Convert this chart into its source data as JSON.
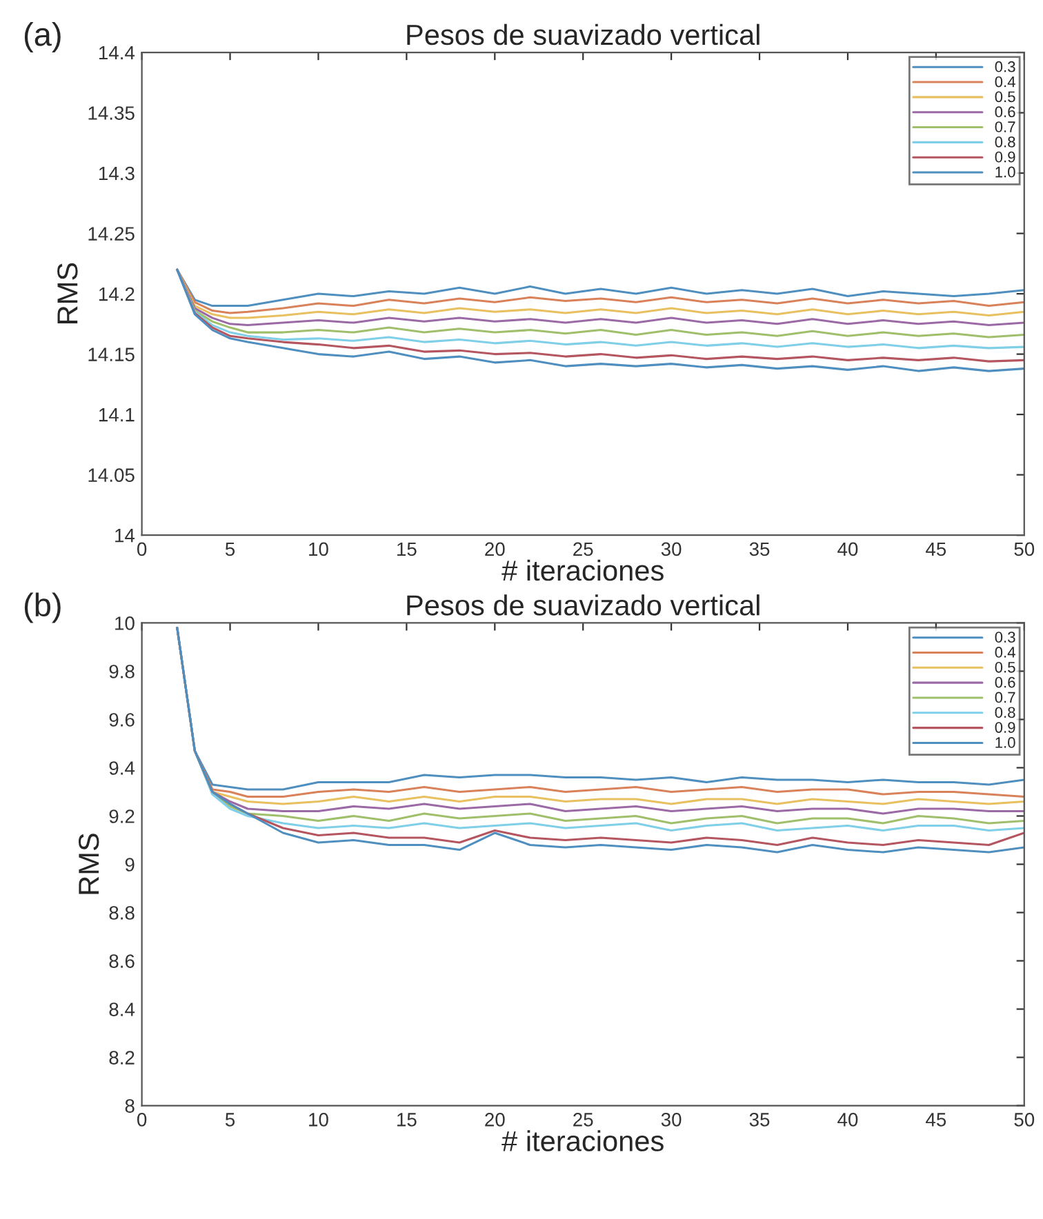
{
  "chart_data": [
    {
      "type": "line",
      "title": "Pesos de suavizado vertical",
      "xlabel": "# iteraciones",
      "ylabel": "RMS",
      "annotations": [
        "(a)"
      ],
      "x": [
        2,
        3,
        4,
        5,
        6,
        8,
        10,
        12,
        14,
        16,
        18,
        20,
        22,
        24,
        26,
        28,
        30,
        32,
        34,
        36,
        38,
        40,
        42,
        44,
        46,
        48,
        50
      ],
      "xlim": [
        0,
        50
      ],
      "xticks": [
        0,
        5,
        10,
        15,
        20,
        25,
        30,
        35,
        40,
        45,
        50
      ],
      "ylim": [
        14,
        14.4
      ],
      "yticks": [
        14,
        14.05,
        14.1,
        14.15,
        14.2,
        14.25,
        14.3,
        14.35,
        14.4
      ],
      "legend": "top right",
      "grid": false,
      "line_style": "solid",
      "marker": "none",
      "series": [
        {
          "name": "0.3",
          "color": "#4f8fc0",
          "values": [
            14.22,
            14.195,
            14.19,
            14.19,
            14.19,
            14.195,
            14.2,
            14.198,
            14.202,
            14.2,
            14.205,
            14.2,
            14.206,
            14.2,
            14.204,
            14.2,
            14.205,
            14.2,
            14.203,
            14.2,
            14.204,
            14.198,
            14.202,
            14.2,
            14.198,
            14.2,
            14.203
          ]
        },
        {
          "name": "0.4",
          "color": "#d9825a",
          "values": [
            14.22,
            14.193,
            14.186,
            14.184,
            14.185,
            14.188,
            14.192,
            14.19,
            14.195,
            14.192,
            14.196,
            14.193,
            14.197,
            14.194,
            14.196,
            14.193,
            14.197,
            14.193,
            14.195,
            14.192,
            14.196,
            14.192,
            14.195,
            14.192,
            14.194,
            14.19,
            14.193
          ]
        },
        {
          "name": "0.5",
          "color": "#e8c060",
          "values": [
            14.22,
            14.19,
            14.183,
            14.18,
            14.18,
            14.182,
            14.185,
            14.183,
            14.187,
            14.184,
            14.188,
            14.185,
            14.187,
            14.184,
            14.187,
            14.184,
            14.188,
            14.184,
            14.186,
            14.183,
            14.187,
            14.183,
            14.186,
            14.183,
            14.185,
            14.182,
            14.185
          ]
        },
        {
          "name": "0.6",
          "color": "#9b6aa6",
          "values": [
            14.22,
            14.188,
            14.18,
            14.175,
            14.174,
            14.176,
            14.178,
            14.176,
            14.18,
            14.177,
            14.18,
            14.177,
            14.179,
            14.176,
            14.179,
            14.176,
            14.18,
            14.176,
            14.178,
            14.175,
            14.179,
            14.175,
            14.178,
            14.175,
            14.177,
            14.174,
            14.176
          ]
        },
        {
          "name": "0.7",
          "color": "#9fbf6a",
          "values": [
            14.22,
            14.186,
            14.177,
            14.172,
            14.168,
            14.168,
            14.17,
            14.168,
            14.172,
            14.168,
            14.171,
            14.168,
            14.17,
            14.167,
            14.17,
            14.166,
            14.17,
            14.166,
            14.168,
            14.165,
            14.169,
            14.165,
            14.168,
            14.165,
            14.167,
            14.164,
            14.166
          ]
        },
        {
          "name": "0.8",
          "color": "#7fcfe8",
          "values": [
            14.22,
            14.185,
            14.174,
            14.168,
            14.165,
            14.162,
            14.163,
            14.161,
            14.164,
            14.16,
            14.162,
            14.159,
            14.161,
            14.158,
            14.16,
            14.157,
            14.16,
            14.157,
            14.159,
            14.156,
            14.159,
            14.156,
            14.158,
            14.155,
            14.157,
            14.155,
            14.156
          ]
        },
        {
          "name": "0.9",
          "color": "#b5555f",
          "values": [
            14.22,
            14.184,
            14.172,
            14.165,
            14.163,
            14.16,
            14.158,
            14.155,
            14.157,
            14.152,
            14.153,
            14.15,
            14.151,
            14.148,
            14.15,
            14.147,
            14.149,
            14.146,
            14.148,
            14.146,
            14.148,
            14.145,
            14.147,
            14.145,
            14.147,
            14.144,
            14.145
          ]
        },
        {
          "name": "1.0",
          "color": "#4f8fc0",
          "values": [
            14.22,
            14.183,
            14.17,
            14.163,
            14.16,
            14.155,
            14.15,
            14.148,
            14.152,
            14.146,
            14.148,
            14.143,
            14.145,
            14.14,
            14.142,
            14.14,
            14.142,
            14.139,
            14.141,
            14.138,
            14.14,
            14.137,
            14.14,
            14.136,
            14.139,
            14.136,
            14.138
          ]
        }
      ]
    },
    {
      "type": "line",
      "title": "Pesos de suavizado vertical",
      "xlabel": "# iteraciones",
      "ylabel": "RMS",
      "annotations": [
        "(b)"
      ],
      "x": [
        2,
        3,
        4,
        5,
        6,
        8,
        10,
        12,
        14,
        16,
        18,
        20,
        22,
        24,
        26,
        28,
        30,
        32,
        34,
        36,
        38,
        40,
        42,
        44,
        46,
        48,
        50
      ],
      "xlim": [
        0,
        50
      ],
      "xticks": [
        0,
        5,
        10,
        15,
        20,
        25,
        30,
        35,
        40,
        45,
        50
      ],
      "ylim": [
        8,
        10
      ],
      "yticks": [
        8,
        8.2,
        8.4,
        8.6,
        8.8,
        9,
        9.2,
        9.4,
        9.6,
        9.8,
        10
      ],
      "legend": "top right",
      "grid": false,
      "line_style": "solid",
      "marker": "none",
      "series": [
        {
          "name": "0.3",
          "color": "#4f8fc0",
          "values": [
            9.98,
            9.47,
            9.33,
            9.32,
            9.31,
            9.31,
            9.34,
            9.34,
            9.34,
            9.37,
            9.36,
            9.37,
            9.37,
            9.36,
            9.36,
            9.35,
            9.36,
            9.34,
            9.36,
            9.35,
            9.35,
            9.34,
            9.35,
            9.34,
            9.34,
            9.33,
            9.35
          ]
        },
        {
          "name": "0.4",
          "color": "#d9825a",
          "values": [
            9.98,
            9.47,
            9.31,
            9.3,
            9.28,
            9.28,
            9.3,
            9.31,
            9.3,
            9.32,
            9.3,
            9.31,
            9.32,
            9.3,
            9.31,
            9.32,
            9.3,
            9.31,
            9.32,
            9.3,
            9.31,
            9.31,
            9.29,
            9.3,
            9.3,
            9.29,
            9.28
          ]
        },
        {
          "name": "0.5",
          "color": "#e8c060",
          "values": [
            9.98,
            9.47,
            9.3,
            9.28,
            9.26,
            9.25,
            9.26,
            9.28,
            9.26,
            9.28,
            9.26,
            9.28,
            9.28,
            9.26,
            9.27,
            9.27,
            9.25,
            9.27,
            9.27,
            9.25,
            9.27,
            9.26,
            9.25,
            9.27,
            9.26,
            9.25,
            9.26
          ]
        },
        {
          "name": "0.6",
          "color": "#9b6aa6",
          "values": [
            9.98,
            9.47,
            9.3,
            9.26,
            9.23,
            9.22,
            9.22,
            9.24,
            9.23,
            9.25,
            9.23,
            9.24,
            9.25,
            9.22,
            9.23,
            9.24,
            9.22,
            9.23,
            9.24,
            9.22,
            9.23,
            9.23,
            9.21,
            9.23,
            9.23,
            9.22,
            9.22
          ]
        },
        {
          "name": "0.7",
          "color": "#9fbf6a",
          "values": [
            9.98,
            9.47,
            9.29,
            9.24,
            9.21,
            9.2,
            9.18,
            9.2,
            9.18,
            9.21,
            9.19,
            9.2,
            9.21,
            9.18,
            9.19,
            9.2,
            9.17,
            9.19,
            9.2,
            9.17,
            9.19,
            9.19,
            9.17,
            9.2,
            9.19,
            9.17,
            9.18
          ]
        },
        {
          "name": "0.8",
          "color": "#7fcfe8",
          "values": [
            9.98,
            9.47,
            9.29,
            9.23,
            9.2,
            9.17,
            9.15,
            9.16,
            9.15,
            9.17,
            9.15,
            9.16,
            9.17,
            9.15,
            9.16,
            9.17,
            9.14,
            9.16,
            9.17,
            9.14,
            9.15,
            9.16,
            9.14,
            9.16,
            9.16,
            9.14,
            9.15
          ]
        },
        {
          "name": "0.9",
          "color": "#b5555f",
          "values": [
            9.98,
            9.47,
            9.3,
            9.25,
            9.21,
            9.15,
            9.12,
            9.13,
            9.11,
            9.11,
            9.09,
            9.14,
            9.11,
            9.1,
            9.11,
            9.1,
            9.09,
            9.11,
            9.1,
            9.08,
            9.11,
            9.09,
            9.08,
            9.1,
            9.09,
            9.08,
            9.13
          ]
        },
        {
          "name": "1.0",
          "color": "#4f8fc0",
          "values": [
            9.98,
            9.47,
            9.3,
            9.25,
            9.21,
            9.13,
            9.09,
            9.1,
            9.08,
            9.08,
            9.06,
            9.13,
            9.08,
            9.07,
            9.08,
            9.07,
            9.06,
            9.08,
            9.07,
            9.05,
            9.08,
            9.06,
            9.05,
            9.07,
            9.06,
            9.05,
            9.07
          ]
        }
      ]
    }
  ]
}
